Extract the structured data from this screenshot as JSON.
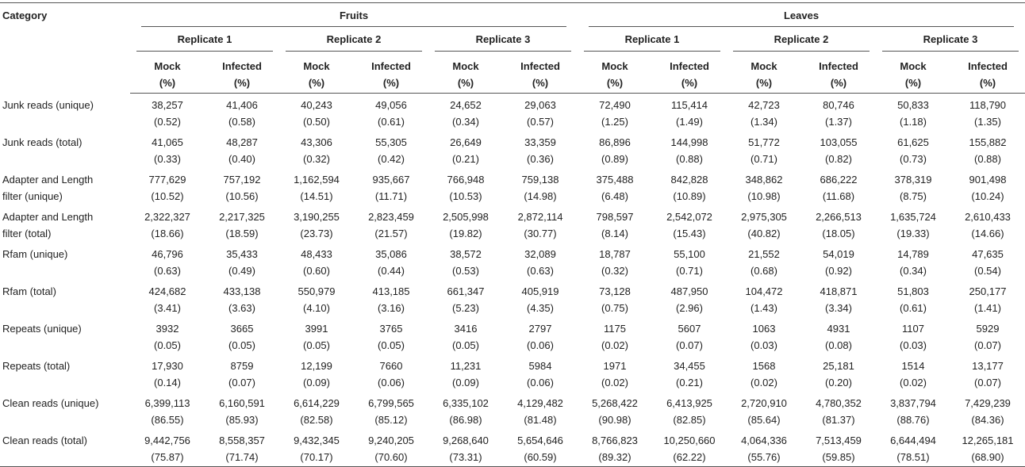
{
  "table": {
    "header": {
      "category": "Category",
      "groups": [
        {
          "name": "Fruits",
          "replicates": [
            {
              "name": "Replicate 1",
              "columns": [
                [
                  "Mock",
                  "(%)"
                ],
                [
                  "Infected",
                  "(%)"
                ]
              ]
            },
            {
              "name": "Replicate 2",
              "columns": [
                [
                  "Mock",
                  "(%)"
                ],
                [
                  "Infected",
                  "(%)"
                ]
              ]
            },
            {
              "name": "Replicate 3",
              "columns": [
                [
                  "Mock",
                  "(%)"
                ],
                [
                  "Infected",
                  "(%)"
                ]
              ]
            }
          ]
        },
        {
          "name": "Leaves",
          "replicates": [
            {
              "name": "Replicate 1",
              "columns": [
                [
                  "Mock",
                  "(%)"
                ],
                [
                  "Infected",
                  "(%)"
                ]
              ]
            },
            {
              "name": "Replicate 2",
              "columns": [
                [
                  "Mock",
                  "(%)"
                ],
                [
                  "Infected",
                  "(%)"
                ]
              ]
            },
            {
              "name": "Replicate 3",
              "columns": [
                [
                  "Mock",
                  "(%)"
                ],
                [
                  "Infected",
                  "(%)"
                ]
              ]
            }
          ]
        }
      ]
    },
    "rows": [
      {
        "label": "Junk reads (unique)",
        "cells": [
          [
            "38,257",
            "(0.52)"
          ],
          [
            "41,406",
            "(0.58)"
          ],
          [
            "40,243",
            "(0.50)"
          ],
          [
            "49,056",
            "(0.61)"
          ],
          [
            "24,652",
            "(0.34)"
          ],
          [
            "29,063",
            "(0.57)"
          ],
          [
            "72,490",
            "(1.25)"
          ],
          [
            "115,414",
            "(1.49)"
          ],
          [
            "42,723",
            "(1.34)"
          ],
          [
            "80,746",
            "(1.37)"
          ],
          [
            "50,833",
            "(1.18)"
          ],
          [
            "118,790",
            "(1.35)"
          ]
        ]
      },
      {
        "label": "Junk reads (total)",
        "cells": [
          [
            "41,065",
            "(0.33)"
          ],
          [
            "48,287",
            "(0.40)"
          ],
          [
            "43,306",
            "(0.32)"
          ],
          [
            "55,305",
            "(0.42)"
          ],
          [
            "26,649",
            "(0.21)"
          ],
          [
            "33,359",
            "(0.36)"
          ],
          [
            "86,896",
            "(0.89)"
          ],
          [
            "144,998",
            "(0.88)"
          ],
          [
            "51,772",
            "(0.71)"
          ],
          [
            "103,055",
            "(0.82)"
          ],
          [
            "61,625",
            "(0.73)"
          ],
          [
            "155,882",
            "(0.88)"
          ]
        ]
      },
      {
        "label": "Adapter and Length filter (unique)",
        "cells": [
          [
            "777,629",
            "(10.52)"
          ],
          [
            "757,192",
            "(10.56)"
          ],
          [
            "1,162,594",
            "(14.51)"
          ],
          [
            "935,667",
            "(11.71)"
          ],
          [
            "766,948",
            "(10.53)"
          ],
          [
            "759,138",
            "(14.98)"
          ],
          [
            "375,488",
            "(6.48)"
          ],
          [
            "842,828",
            "(10.89)"
          ],
          [
            "348,862",
            "(10.98)"
          ],
          [
            "686,222",
            "(11.68)"
          ],
          [
            "378,319",
            "(8.75)"
          ],
          [
            "901,498",
            "(10.24)"
          ]
        ]
      },
      {
        "label": "Adapter and Length filter (total)",
        "cells": [
          [
            "2,322,327",
            "(18.66)"
          ],
          [
            "2,217,325",
            "(18.59)"
          ],
          [
            "3,190,255",
            "(23.73)"
          ],
          [
            "2,823,459",
            "(21.57)"
          ],
          [
            "2,505,998",
            "(19.82)"
          ],
          [
            "2,872,114",
            "(30.77)"
          ],
          [
            "798,597",
            "(8.14)"
          ],
          [
            "2,542,072",
            "(15.43)"
          ],
          [
            "2,975,305",
            "(40.82)"
          ],
          [
            "2,266,513",
            "(18.05)"
          ],
          [
            "1,635,724",
            "(19.33)"
          ],
          [
            "2,610,433",
            "(14.66)"
          ]
        ]
      },
      {
        "label": "Rfam (unique)",
        "cells": [
          [
            "46,796",
            "(0.63)"
          ],
          [
            "35,433",
            "(0.49)"
          ],
          [
            "48,433",
            "(0.60)"
          ],
          [
            "35,086",
            "(0.44)"
          ],
          [
            "38,572",
            "(0.53)"
          ],
          [
            "32,089",
            "(0.63)"
          ],
          [
            "18,787",
            "(0.32)"
          ],
          [
            "55,100",
            "(0.71)"
          ],
          [
            "21,552",
            "(0.68)"
          ],
          [
            "54,019",
            "(0.92)"
          ],
          [
            "14,789",
            "(0.34)"
          ],
          [
            "47,635",
            "(0.54)"
          ]
        ]
      },
      {
        "label": "Rfam (total)",
        "cells": [
          [
            "424,682",
            "(3.41)"
          ],
          [
            "433,138",
            "(3.63)"
          ],
          [
            "550,979",
            "(4.10)"
          ],
          [
            "413,185",
            "(3.16)"
          ],
          [
            "661,347",
            "(5.23)"
          ],
          [
            "405,919",
            "(4.35)"
          ],
          [
            "73,128",
            "(0.75)"
          ],
          [
            "487,950",
            "(2.96)"
          ],
          [
            "104,472",
            "(1.43)"
          ],
          [
            "418,871",
            "(3.34)"
          ],
          [
            "51,803",
            "(0.61)"
          ],
          [
            "250,177",
            "(1.41)"
          ]
        ]
      },
      {
        "label": "Repeats (unique)",
        "cells": [
          [
            "3932",
            "(0.05)"
          ],
          [
            "3665",
            "(0.05)"
          ],
          [
            "3991",
            "(0.05)"
          ],
          [
            "3765",
            "(0.05)"
          ],
          [
            "3416",
            "(0.05)"
          ],
          [
            "2797",
            "(0.06)"
          ],
          [
            "1175",
            "(0.02)"
          ],
          [
            "5607",
            "(0.07)"
          ],
          [
            "1063",
            "(0.03)"
          ],
          [
            "4931",
            "(0.08)"
          ],
          [
            "1107",
            "(0.03)"
          ],
          [
            "5929",
            "(0.07)"
          ]
        ]
      },
      {
        "label": "Repeats (total)",
        "cells": [
          [
            "17,930",
            "(0.14)"
          ],
          [
            "8759",
            "(0.07)"
          ],
          [
            "12,199",
            "(0.09)"
          ],
          [
            "7660",
            "(0.06)"
          ],
          [
            "11,231",
            "(0.09)"
          ],
          [
            "5984",
            "(0.06)"
          ],
          [
            "1971",
            "(0.02)"
          ],
          [
            "34,455",
            "(0.21)"
          ],
          [
            "1568",
            "(0.02)"
          ],
          [
            "25,181",
            "(0.20)"
          ],
          [
            "1514",
            "(0.02)"
          ],
          [
            "13,177",
            "(0.07)"
          ]
        ]
      },
      {
        "label": "Clean reads (unique)",
        "cells": [
          [
            "6,399,113",
            "(86.55)"
          ],
          [
            "6,160,591",
            "(85.93)"
          ],
          [
            "6,614,229",
            "(82.58)"
          ],
          [
            "6,799,565",
            "(85.12)"
          ],
          [
            "6,335,102",
            "(86.98)"
          ],
          [
            "4,129,482",
            "(81.48)"
          ],
          [
            "5,268,422",
            "(90.98)"
          ],
          [
            "6,413,925",
            "(82.85)"
          ],
          [
            "2,720,910",
            "(85.64)"
          ],
          [
            "4,780,352",
            "(81.37)"
          ],
          [
            "3,837,794",
            "(88.76)"
          ],
          [
            "7,429,239",
            "(84.36)"
          ]
        ]
      },
      {
        "label": "Clean reads (total)",
        "cells": [
          [
            "9,442,756",
            "(75.87)"
          ],
          [
            "8,558,357",
            "(71.74)"
          ],
          [
            "9,432,345",
            "(70.17)"
          ],
          [
            "9,240,205",
            "(70.60)"
          ],
          [
            "9,268,640",
            "(73.31)"
          ],
          [
            "5,654,646",
            "(60.59)"
          ],
          [
            "8,766,823",
            "(89.32)"
          ],
          [
            "10,250,660",
            "(62.22)"
          ],
          [
            "4,064,336",
            "(55.76)"
          ],
          [
            "7,513,459",
            "(59.85)"
          ],
          [
            "6,644,494",
            "(78.51)"
          ],
          [
            "12,265,181",
            "(68.90)"
          ]
        ]
      }
    ]
  }
}
